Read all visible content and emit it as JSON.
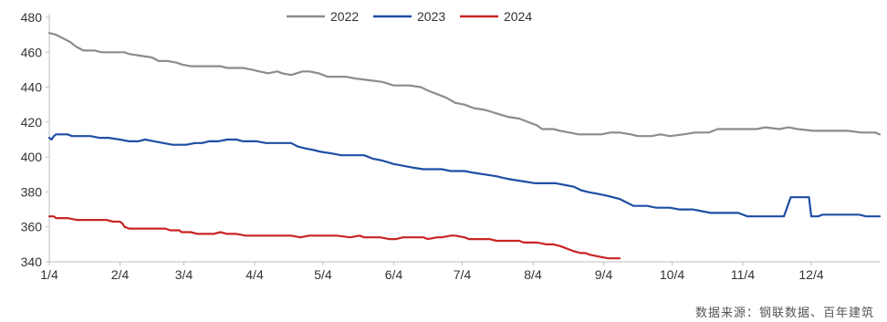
{
  "chart_data": {
    "type": "line",
    "title": "",
    "xlabel": "",
    "ylabel": "",
    "ylim": [
      340,
      480
    ],
    "yticks": [
      340,
      360,
      380,
      400,
      420,
      440,
      460,
      480
    ],
    "xlim": [
      0,
      364
    ],
    "xticks": [
      {
        "label": "1/4",
        "day": 0
      },
      {
        "label": "2/4",
        "day": 31
      },
      {
        "label": "3/4",
        "day": 59
      },
      {
        "label": "4/4",
        "day": 90
      },
      {
        "label": "5/4",
        "day": 120
      },
      {
        "label": "6/4",
        "day": 151
      },
      {
        "label": "7/4",
        "day": 181
      },
      {
        "label": "8/4",
        "day": 212
      },
      {
        "label": "9/4",
        "day": 243
      },
      {
        "label": "10/4",
        "day": 273
      },
      {
        "label": "11/4",
        "day": 304
      },
      {
        "label": "12/4",
        "day": 334
      }
    ],
    "grid": false,
    "legend_position": "top-center",
    "source": "数据来源：钢联数据、百年建筑",
    "series": [
      {
        "name": "2022",
        "color": "#8c8c8c",
        "points": [
          [
            0,
            471
          ],
          [
            3,
            470
          ],
          [
            6,
            468
          ],
          [
            9,
            466
          ],
          [
            12,
            463
          ],
          [
            15,
            461
          ],
          [
            20,
            461
          ],
          [
            23,
            460
          ],
          [
            33,
            460
          ],
          [
            35,
            459
          ],
          [
            40,
            458
          ],
          [
            45,
            457
          ],
          [
            48,
            455
          ],
          [
            52,
            455
          ],
          [
            56,
            454
          ],
          [
            58,
            453
          ],
          [
            62,
            452
          ],
          [
            75,
            452
          ],
          [
            78,
            451
          ],
          [
            85,
            451
          ],
          [
            89,
            450
          ],
          [
            92,
            449
          ],
          [
            96,
            448
          ],
          [
            100,
            449
          ],
          [
            102,
            448
          ],
          [
            106,
            447
          ],
          [
            111,
            449
          ],
          [
            114,
            449
          ],
          [
            118,
            448
          ],
          [
            120,
            447
          ],
          [
            122,
            446
          ],
          [
            130,
            446
          ],
          [
            134,
            445
          ],
          [
            140,
            444
          ],
          [
            146,
            443
          ],
          [
            151,
            441
          ],
          [
            158,
            441
          ],
          [
            163,
            440
          ],
          [
            166,
            438
          ],
          [
            170,
            436
          ],
          [
            174,
            434
          ],
          [
            178,
            431
          ],
          [
            182,
            430
          ],
          [
            186,
            428
          ],
          [
            191,
            427
          ],
          [
            196,
            425
          ],
          [
            201,
            423
          ],
          [
            206,
            422
          ],
          [
            210,
            420
          ],
          [
            214,
            418
          ],
          [
            216,
            416
          ],
          [
            221,
            416
          ],
          [
            224,
            415
          ],
          [
            228,
            414
          ],
          [
            232,
            413
          ],
          [
            242,
            413
          ],
          [
            246,
            414
          ],
          [
            250,
            414
          ],
          [
            255,
            413
          ],
          [
            258,
            412
          ],
          [
            264,
            412
          ],
          [
            268,
            413
          ],
          [
            272,
            412
          ],
          [
            278,
            413
          ],
          [
            283,
            414
          ],
          [
            289,
            414
          ],
          [
            293,
            416
          ],
          [
            300,
            416
          ],
          [
            310,
            416
          ],
          [
            314,
            417
          ],
          [
            320,
            416
          ],
          [
            324,
            417
          ],
          [
            328,
            416
          ],
          [
            335,
            415
          ],
          [
            350,
            415
          ],
          [
            356,
            414
          ],
          [
            362,
            414
          ],
          [
            364,
            413
          ]
        ]
      },
      {
        "name": "2023",
        "color": "#1f4ea3",
        "points": [
          [
            0,
            411
          ],
          [
            1,
            410
          ],
          [
            2,
            412
          ],
          [
            3,
            413
          ],
          [
            8,
            413
          ],
          [
            10,
            412
          ],
          [
            18,
            412
          ],
          [
            22,
            411
          ],
          [
            26,
            411
          ],
          [
            31,
            410
          ],
          [
            35,
            409
          ],
          [
            39,
            409
          ],
          [
            42,
            410
          ],
          [
            46,
            409
          ],
          [
            50,
            408
          ],
          [
            54,
            407
          ],
          [
            60,
            407
          ],
          [
            64,
            408
          ],
          [
            67,
            408
          ],
          [
            70,
            409
          ],
          [
            74,
            409
          ],
          [
            78,
            410
          ],
          [
            82,
            410
          ],
          [
            85,
            409
          ],
          [
            91,
            409
          ],
          [
            95,
            408
          ],
          [
            106,
            408
          ],
          [
            109,
            406
          ],
          [
            112,
            405
          ],
          [
            116,
            404
          ],
          [
            119,
            403
          ],
          [
            124,
            402
          ],
          [
            128,
            401
          ],
          [
            138,
            401
          ],
          [
            142,
            399
          ],
          [
            146,
            398
          ],
          [
            151,
            396
          ],
          [
            155,
            395
          ],
          [
            159,
            394
          ],
          [
            164,
            393
          ],
          [
            172,
            393
          ],
          [
            176,
            392
          ],
          [
            182,
            392
          ],
          [
            186,
            391
          ],
          [
            191,
            390
          ],
          [
            196,
            389
          ],
          [
            199,
            388
          ],
          [
            203,
            387
          ],
          [
            208,
            386
          ],
          [
            213,
            385
          ],
          [
            222,
            385
          ],
          [
            226,
            384
          ],
          [
            230,
            383
          ],
          [
            233,
            381
          ],
          [
            236,
            380
          ],
          [
            240,
            379
          ],
          [
            244,
            378
          ],
          [
            247,
            377
          ],
          [
            250,
            376
          ],
          [
            253,
            374
          ],
          [
            256,
            372
          ],
          [
            262,
            372
          ],
          [
            266,
            371
          ],
          [
            272,
            371
          ],
          [
            276,
            370
          ],
          [
            282,
            370
          ],
          [
            286,
            369
          ],
          [
            290,
            368
          ],
          [
            302,
            368
          ],
          [
            306,
            366
          ],
          [
            322,
            366
          ],
          [
            325,
            377
          ],
          [
            333,
            377
          ],
          [
            334,
            366
          ],
          [
            337,
            366
          ],
          [
            339,
            367
          ],
          [
            355,
            367
          ],
          [
            358,
            366
          ],
          [
            364,
            366
          ]
        ]
      },
      {
        "name": "2024",
        "color": "#c82423",
        "points": [
          [
            0,
            366
          ],
          [
            2,
            366
          ],
          [
            3,
            365
          ],
          [
            8,
            365
          ],
          [
            12,
            364
          ],
          [
            25,
            364
          ],
          [
            28,
            363
          ],
          [
            31,
            363
          ],
          [
            32,
            362
          ],
          [
            33,
            360
          ],
          [
            35,
            359
          ],
          [
            44,
            359
          ],
          [
            51,
            359
          ],
          [
            53,
            358
          ],
          [
            57,
            358
          ],
          [
            58,
            357
          ],
          [
            62,
            357
          ],
          [
            65,
            356
          ],
          [
            68,
            356
          ],
          [
            72,
            356
          ],
          [
            75,
            357
          ],
          [
            78,
            356
          ],
          [
            82,
            356
          ],
          [
            86,
            355
          ],
          [
            103,
            355
          ],
          [
            106,
            355
          ],
          [
            110,
            354
          ],
          [
            114,
            355
          ],
          [
            126,
            355
          ],
          [
            132,
            354
          ],
          [
            136,
            355
          ],
          [
            138,
            354
          ],
          [
            145,
            354
          ],
          [
            149,
            353
          ],
          [
            152,
            353
          ],
          [
            155,
            354
          ],
          [
            158,
            354
          ],
          [
            164,
            354
          ],
          [
            166,
            353
          ],
          [
            170,
            354
          ],
          [
            172,
            354
          ],
          [
            176,
            355
          ],
          [
            178,
            355
          ],
          [
            182,
            354
          ],
          [
            184,
            353
          ],
          [
            193,
            353
          ],
          [
            196,
            352
          ],
          [
            206,
            352
          ],
          [
            208,
            351
          ],
          [
            214,
            351
          ],
          [
            218,
            350
          ],
          [
            221,
            350
          ],
          [
            224,
            349
          ],
          [
            226,
            348
          ],
          [
            228,
            347
          ],
          [
            230,
            346
          ],
          [
            233,
            345
          ],
          [
            235,
            345
          ],
          [
            237,
            344
          ],
          [
            241,
            343
          ],
          [
            245,
            342
          ],
          [
            250,
            342
          ]
        ]
      }
    ]
  }
}
